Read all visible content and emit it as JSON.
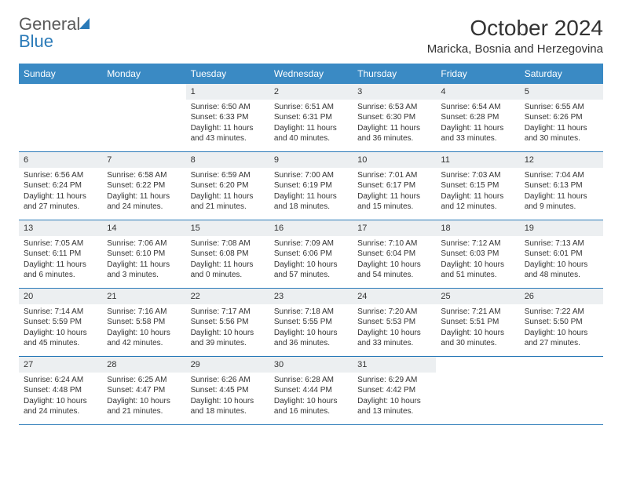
{
  "logo": {
    "text1": "General",
    "text2": "Blue"
  },
  "title": "October 2024",
  "location": "Maricka, Bosnia and Herzegovina",
  "colors": {
    "header_bg": "#3a8ac4",
    "header_text": "#ffffff",
    "daynum_bg": "#eceff1",
    "border": "#2a7ab8",
    "text": "#333333",
    "logo_gray": "#5a5a5a",
    "logo_blue": "#2a7ab8",
    "background": "#ffffff"
  },
  "typography": {
    "title_fontsize": 28,
    "location_fontsize": 15,
    "dayname_fontsize": 12,
    "daynum_fontsize": 11,
    "body_fontsize": 10
  },
  "daynames": [
    "Sunday",
    "Monday",
    "Tuesday",
    "Wednesday",
    "Thursday",
    "Friday",
    "Saturday"
  ],
  "weeks": [
    [
      {
        "empty": true
      },
      {
        "empty": true
      },
      {
        "n": "1",
        "sr": "Sunrise: 6:50 AM",
        "ss": "Sunset: 6:33 PM",
        "d1": "Daylight: 11 hours",
        "d2": "and 43 minutes."
      },
      {
        "n": "2",
        "sr": "Sunrise: 6:51 AM",
        "ss": "Sunset: 6:31 PM",
        "d1": "Daylight: 11 hours",
        "d2": "and 40 minutes."
      },
      {
        "n": "3",
        "sr": "Sunrise: 6:53 AM",
        "ss": "Sunset: 6:30 PM",
        "d1": "Daylight: 11 hours",
        "d2": "and 36 minutes."
      },
      {
        "n": "4",
        "sr": "Sunrise: 6:54 AM",
        "ss": "Sunset: 6:28 PM",
        "d1": "Daylight: 11 hours",
        "d2": "and 33 minutes."
      },
      {
        "n": "5",
        "sr": "Sunrise: 6:55 AM",
        "ss": "Sunset: 6:26 PM",
        "d1": "Daylight: 11 hours",
        "d2": "and 30 minutes."
      }
    ],
    [
      {
        "n": "6",
        "sr": "Sunrise: 6:56 AM",
        "ss": "Sunset: 6:24 PM",
        "d1": "Daylight: 11 hours",
        "d2": "and 27 minutes."
      },
      {
        "n": "7",
        "sr": "Sunrise: 6:58 AM",
        "ss": "Sunset: 6:22 PM",
        "d1": "Daylight: 11 hours",
        "d2": "and 24 minutes."
      },
      {
        "n": "8",
        "sr": "Sunrise: 6:59 AM",
        "ss": "Sunset: 6:20 PM",
        "d1": "Daylight: 11 hours",
        "d2": "and 21 minutes."
      },
      {
        "n": "9",
        "sr": "Sunrise: 7:00 AM",
        "ss": "Sunset: 6:19 PM",
        "d1": "Daylight: 11 hours",
        "d2": "and 18 minutes."
      },
      {
        "n": "10",
        "sr": "Sunrise: 7:01 AM",
        "ss": "Sunset: 6:17 PM",
        "d1": "Daylight: 11 hours",
        "d2": "and 15 minutes."
      },
      {
        "n": "11",
        "sr": "Sunrise: 7:03 AM",
        "ss": "Sunset: 6:15 PM",
        "d1": "Daylight: 11 hours",
        "d2": "and 12 minutes."
      },
      {
        "n": "12",
        "sr": "Sunrise: 7:04 AM",
        "ss": "Sunset: 6:13 PM",
        "d1": "Daylight: 11 hours",
        "d2": "and 9 minutes."
      }
    ],
    [
      {
        "n": "13",
        "sr": "Sunrise: 7:05 AM",
        "ss": "Sunset: 6:11 PM",
        "d1": "Daylight: 11 hours",
        "d2": "and 6 minutes."
      },
      {
        "n": "14",
        "sr": "Sunrise: 7:06 AM",
        "ss": "Sunset: 6:10 PM",
        "d1": "Daylight: 11 hours",
        "d2": "and 3 minutes."
      },
      {
        "n": "15",
        "sr": "Sunrise: 7:08 AM",
        "ss": "Sunset: 6:08 PM",
        "d1": "Daylight: 11 hours",
        "d2": "and 0 minutes."
      },
      {
        "n": "16",
        "sr": "Sunrise: 7:09 AM",
        "ss": "Sunset: 6:06 PM",
        "d1": "Daylight: 10 hours",
        "d2": "and 57 minutes."
      },
      {
        "n": "17",
        "sr": "Sunrise: 7:10 AM",
        "ss": "Sunset: 6:04 PM",
        "d1": "Daylight: 10 hours",
        "d2": "and 54 minutes."
      },
      {
        "n": "18",
        "sr": "Sunrise: 7:12 AM",
        "ss": "Sunset: 6:03 PM",
        "d1": "Daylight: 10 hours",
        "d2": "and 51 minutes."
      },
      {
        "n": "19",
        "sr": "Sunrise: 7:13 AM",
        "ss": "Sunset: 6:01 PM",
        "d1": "Daylight: 10 hours",
        "d2": "and 48 minutes."
      }
    ],
    [
      {
        "n": "20",
        "sr": "Sunrise: 7:14 AM",
        "ss": "Sunset: 5:59 PM",
        "d1": "Daylight: 10 hours",
        "d2": "and 45 minutes."
      },
      {
        "n": "21",
        "sr": "Sunrise: 7:16 AM",
        "ss": "Sunset: 5:58 PM",
        "d1": "Daylight: 10 hours",
        "d2": "and 42 minutes."
      },
      {
        "n": "22",
        "sr": "Sunrise: 7:17 AM",
        "ss": "Sunset: 5:56 PM",
        "d1": "Daylight: 10 hours",
        "d2": "and 39 minutes."
      },
      {
        "n": "23",
        "sr": "Sunrise: 7:18 AM",
        "ss": "Sunset: 5:55 PM",
        "d1": "Daylight: 10 hours",
        "d2": "and 36 minutes."
      },
      {
        "n": "24",
        "sr": "Sunrise: 7:20 AM",
        "ss": "Sunset: 5:53 PM",
        "d1": "Daylight: 10 hours",
        "d2": "and 33 minutes."
      },
      {
        "n": "25",
        "sr": "Sunrise: 7:21 AM",
        "ss": "Sunset: 5:51 PM",
        "d1": "Daylight: 10 hours",
        "d2": "and 30 minutes."
      },
      {
        "n": "26",
        "sr": "Sunrise: 7:22 AM",
        "ss": "Sunset: 5:50 PM",
        "d1": "Daylight: 10 hours",
        "d2": "and 27 minutes."
      }
    ],
    [
      {
        "n": "27",
        "sr": "Sunrise: 6:24 AM",
        "ss": "Sunset: 4:48 PM",
        "d1": "Daylight: 10 hours",
        "d2": "and 24 minutes."
      },
      {
        "n": "28",
        "sr": "Sunrise: 6:25 AM",
        "ss": "Sunset: 4:47 PM",
        "d1": "Daylight: 10 hours",
        "d2": "and 21 minutes."
      },
      {
        "n": "29",
        "sr": "Sunrise: 6:26 AM",
        "ss": "Sunset: 4:45 PM",
        "d1": "Daylight: 10 hours",
        "d2": "and 18 minutes."
      },
      {
        "n": "30",
        "sr": "Sunrise: 6:28 AM",
        "ss": "Sunset: 4:44 PM",
        "d1": "Daylight: 10 hours",
        "d2": "and 16 minutes."
      },
      {
        "n": "31",
        "sr": "Sunrise: 6:29 AM",
        "ss": "Sunset: 4:42 PM",
        "d1": "Daylight: 10 hours",
        "d2": "and 13 minutes."
      },
      {
        "empty": true
      },
      {
        "empty": true
      }
    ]
  ]
}
